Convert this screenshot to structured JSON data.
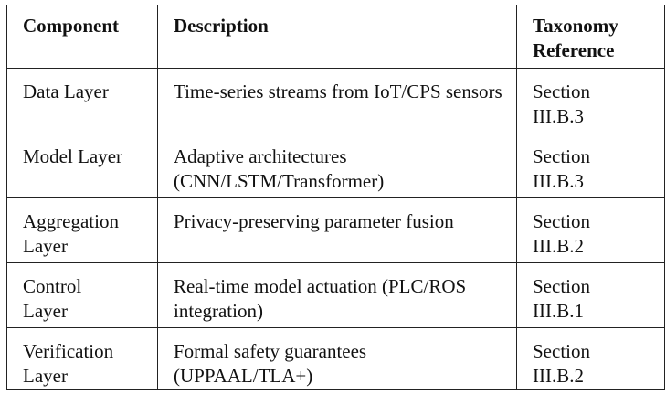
{
  "table": {
    "headers": {
      "component": "Component",
      "description": "Description",
      "taxonomy_line1": "Taxonomy",
      "taxonomy_line2": "Reference"
    },
    "rows": [
      {
        "component": "Data Layer",
        "description": "Time-series streams from IoT/CPS sensors",
        "ref_line1": "Section",
        "ref_line2": "III.B.3"
      },
      {
        "component": "Model Layer",
        "description": "Adaptive architectures (CNN/LSTM/Transformer)",
        "ref_line1": "Section",
        "ref_line2": "III.B.3"
      },
      {
        "component_line1": "Aggregation",
        "component_line2": "Layer",
        "description": "Privacy-preserving parameter fusion",
        "ref_line1": "Section",
        "ref_line2": "III.B.2"
      },
      {
        "component_line1": "Control",
        "component_line2": "Layer",
        "description": "Real-time model actuation (PLC/ROS integration)",
        "ref_line1": "Section",
        "ref_line2": "III.B.1"
      },
      {
        "component_line1": "Verification",
        "component_line2": "Layer",
        "description": "Formal safety guarantees (UPPAAL/TLA+)",
        "ref_line1": "Section",
        "ref_line2": "III.B.2"
      }
    ]
  }
}
